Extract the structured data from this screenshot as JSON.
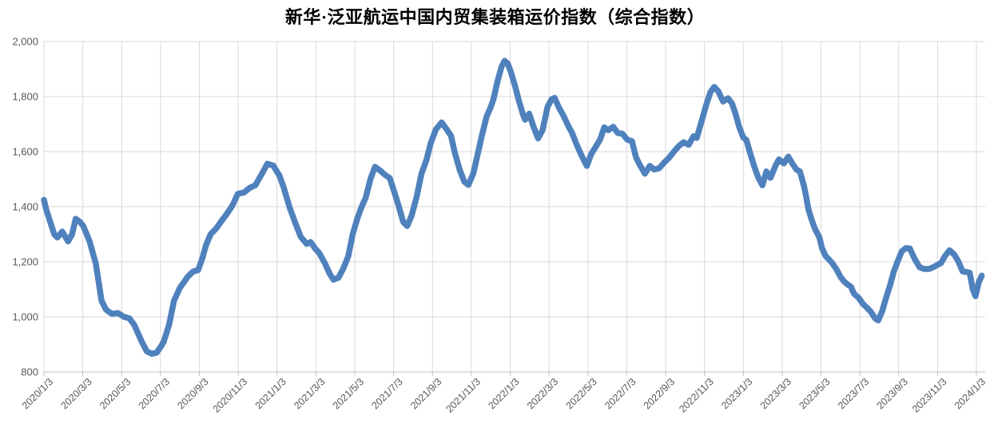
{
  "chart_data": {
    "type": "line",
    "title": "新华·泛亚航运中国内贸集装箱运价指数（综合指数）",
    "legend": "none",
    "grid": true,
    "x_axis": {
      "unit": "weeks since 2020/1/3",
      "start_label": "2020/1/3",
      "end_label": "2024/1/3",
      "total_weeks": 208.7,
      "label_rotation_deg": -45,
      "tick_labels": [
        "2020/1/3",
        "2020/3/3",
        "2020/5/3",
        "2020/7/3",
        "2020/9/3",
        "2020/11/3",
        "2021/1/3",
        "2021/3/3",
        "2021/5/3",
        "2021/7/3",
        "2021/9/3",
        "2021/11/3",
        "2022/1/3",
        "2022/3/3",
        "2022/5/3",
        "2022/7/3",
        "2022/9/3",
        "2022/11/3",
        "2023/1/3",
        "2023/3/3",
        "2023/5/3",
        "2023/7/3",
        "2023/9/3",
        "2023/11/3",
        "2024/1/3"
      ]
    },
    "y_axis": {
      "min": 800,
      "max": 2000,
      "tick_interval": 200,
      "tick_labels": [
        "800",
        "1,000",
        "1,200",
        "1,400",
        "1,600",
        "1,800",
        "2,000"
      ]
    },
    "series": [
      {
        "name": "综合指数",
        "color": "#4f81bd",
        "stroke_width": 7.5,
        "points": [
          [
            0,
            1425
          ],
          [
            0.5,
            1390
          ],
          [
            1.4,
            1345
          ],
          [
            2.3,
            1300
          ],
          [
            3,
            1288
          ],
          [
            4.1,
            1310
          ],
          [
            5.4,
            1274
          ],
          [
            6.3,
            1300
          ],
          [
            7.1,
            1356
          ],
          [
            8,
            1346
          ],
          [
            8.8,
            1330
          ],
          [
            10.2,
            1275
          ],
          [
            11.6,
            1194
          ],
          [
            12.9,
            1058
          ],
          [
            13.9,
            1026
          ],
          [
            15.2,
            1011
          ],
          [
            16.6,
            1014
          ],
          [
            17.9,
            1000
          ],
          [
            19.1,
            995
          ],
          [
            20.2,
            971
          ],
          [
            21.8,
            913
          ],
          [
            23,
            875
          ],
          [
            24.1,
            866
          ],
          [
            25.2,
            870
          ],
          [
            26.1,
            890
          ],
          [
            26.8,
            910
          ],
          [
            28,
            971
          ],
          [
            29.1,
            1058
          ],
          [
            30.4,
            1105
          ],
          [
            32.2,
            1146
          ],
          [
            33.4,
            1165
          ],
          [
            34.5,
            1170
          ],
          [
            35.4,
            1210
          ],
          [
            36.3,
            1262
          ],
          [
            37.3,
            1300
          ],
          [
            38.6,
            1322
          ],
          [
            39.8,
            1350
          ],
          [
            40.9,
            1373
          ],
          [
            42.2,
            1405
          ],
          [
            43.4,
            1447
          ],
          [
            44.8,
            1452
          ],
          [
            46.1,
            1469
          ],
          [
            47.3,
            1478
          ],
          [
            48.8,
            1520
          ],
          [
            50,
            1556
          ],
          [
            51.3,
            1550
          ],
          [
            52.7,
            1513
          ],
          [
            53.6,
            1473
          ],
          [
            55,
            1397
          ],
          [
            56.3,
            1339
          ],
          [
            57.5,
            1290
          ],
          [
            58.8,
            1265
          ],
          [
            59.7,
            1272
          ],
          [
            60.6,
            1250
          ],
          [
            61.6,
            1232
          ],
          [
            62.9,
            1194
          ],
          [
            64,
            1155
          ],
          [
            64.8,
            1135
          ],
          [
            65.9,
            1142
          ],
          [
            67,
            1175
          ],
          [
            68.1,
            1220
          ],
          [
            69.1,
            1300
          ],
          [
            70.2,
            1360
          ],
          [
            71.1,
            1400
          ],
          [
            72,
            1432
          ],
          [
            73.1,
            1502
          ],
          [
            74.1,
            1545
          ],
          [
            75.2,
            1532
          ],
          [
            76.3,
            1516
          ],
          [
            77.4,
            1504
          ],
          [
            78.2,
            1464
          ],
          [
            79.3,
            1408
          ],
          [
            80.4,
            1345
          ],
          [
            81.3,
            1330
          ],
          [
            82.3,
            1368
          ],
          [
            83.4,
            1435
          ],
          [
            84.5,
            1520
          ],
          [
            85.6,
            1570
          ],
          [
            86.6,
            1632
          ],
          [
            87.7,
            1680
          ],
          [
            89,
            1706
          ],
          [
            90,
            1684
          ],
          [
            91.1,
            1658
          ],
          [
            92,
            1594
          ],
          [
            93.1,
            1532
          ],
          [
            94.1,
            1490
          ],
          [
            95,
            1479
          ],
          [
            96.1,
            1521
          ],
          [
            97,
            1585
          ],
          [
            98.1,
            1665
          ],
          [
            99.1,
            1728
          ],
          [
            100,
            1762
          ],
          [
            100.6,
            1790
          ],
          [
            101.5,
            1855
          ],
          [
            102.4,
            1908
          ],
          [
            103.1,
            1930
          ],
          [
            103.8,
            1920
          ],
          [
            104.5,
            1890
          ],
          [
            105.4,
            1840
          ],
          [
            106.3,
            1785
          ],
          [
            107.2,
            1736
          ],
          [
            107.7,
            1716
          ],
          [
            108.6,
            1738
          ],
          [
            109.5,
            1694
          ],
          [
            110.6,
            1648
          ],
          [
            111.6,
            1678
          ],
          [
            112.7,
            1762
          ],
          [
            113.6,
            1790
          ],
          [
            114.3,
            1795
          ],
          [
            115.2,
            1762
          ],
          [
            116.3,
            1730
          ],
          [
            117.4,
            1692
          ],
          [
            118.2,
            1668
          ],
          [
            119.3,
            1623
          ],
          [
            120.2,
            1590
          ],
          [
            121.5,
            1548
          ],
          [
            122.5,
            1592
          ],
          [
            123.6,
            1620
          ],
          [
            124.5,
            1645
          ],
          [
            125.4,
            1688
          ],
          [
            126.3,
            1678
          ],
          [
            127.4,
            1690
          ],
          [
            128.4,
            1668
          ],
          [
            129.5,
            1665
          ],
          [
            130.6,
            1643
          ],
          [
            131.6,
            1638
          ],
          [
            132.5,
            1580
          ],
          [
            133.4,
            1551
          ],
          [
            134.5,
            1520
          ],
          [
            135.6,
            1548
          ],
          [
            136.6,
            1535
          ],
          [
            137.7,
            1540
          ],
          [
            138.8,
            1560
          ],
          [
            139.9,
            1578
          ],
          [
            141.1,
            1602
          ],
          [
            142.2,
            1622
          ],
          [
            143.2,
            1634
          ],
          [
            144.3,
            1625
          ],
          [
            145.4,
            1656
          ],
          [
            146.1,
            1650
          ],
          [
            147.4,
            1722
          ],
          [
            148.3,
            1774
          ],
          [
            149.2,
            1817
          ],
          [
            150,
            1835
          ],
          [
            150.9,
            1820
          ],
          [
            152,
            1782
          ],
          [
            153.1,
            1794
          ],
          [
            154,
            1775
          ],
          [
            154.7,
            1742
          ],
          [
            155.6,
            1690
          ],
          [
            156.5,
            1652
          ],
          [
            157.2,
            1643
          ],
          [
            158.1,
            1592
          ],
          [
            159,
            1545
          ],
          [
            159.9,
            1505
          ],
          [
            160.8,
            1478
          ],
          [
            161.7,
            1528
          ],
          [
            162.6,
            1505
          ],
          [
            163.8,
            1551
          ],
          [
            164.5,
            1572
          ],
          [
            165.6,
            1557
          ],
          [
            166.6,
            1582
          ],
          [
            167.5,
            1557
          ],
          [
            168.4,
            1535
          ],
          [
            169.2,
            1528
          ],
          [
            170.1,
            1475
          ],
          [
            170.6,
            1435
          ],
          [
            171.1,
            1391
          ],
          [
            171.8,
            1353
          ],
          [
            172.5,
            1322
          ],
          [
            173.6,
            1287
          ],
          [
            174.1,
            1252
          ],
          [
            174.9,
            1222
          ],
          [
            175.6,
            1210
          ],
          [
            176.5,
            1194
          ],
          [
            177.4,
            1172
          ],
          [
            178.3,
            1145
          ],
          [
            179.1,
            1128
          ],
          [
            179.9,
            1117
          ],
          [
            180.6,
            1110
          ],
          [
            181.3,
            1084
          ],
          [
            182.4,
            1068
          ],
          [
            183.3,
            1047
          ],
          [
            184.2,
            1033
          ],
          [
            185.1,
            1018
          ],
          [
            186,
            995
          ],
          [
            186.7,
            987
          ],
          [
            187.6,
            1020
          ],
          [
            188.5,
            1070
          ],
          [
            189.4,
            1116
          ],
          [
            190.2,
            1165
          ],
          [
            191.1,
            1203
          ],
          [
            192,
            1238
          ],
          [
            192.9,
            1250
          ],
          [
            193.8,
            1248
          ],
          [
            194.9,
            1210
          ],
          [
            196,
            1180
          ],
          [
            197,
            1174
          ],
          [
            198.1,
            1174
          ],
          [
            199,
            1180
          ],
          [
            199.9,
            1188
          ],
          [
            200.8,
            1196
          ],
          [
            201.7,
            1222
          ],
          [
            202.7,
            1242
          ],
          [
            203.8,
            1225
          ],
          [
            204.7,
            1200
          ],
          [
            205.6,
            1165
          ],
          [
            206.5,
            1163
          ],
          [
            207.2,
            1160
          ],
          [
            207.9,
            1100
          ],
          [
            208.5,
            1075
          ],
          [
            209.2,
            1125
          ],
          [
            209.9,
            1150
          ]
        ]
      }
    ]
  },
  "colors": {
    "background": "#ffffff",
    "gridline": "#d9d9d9",
    "axis_line": "#bfbfbf",
    "tick_label": "#595959",
    "title": "#000000"
  }
}
